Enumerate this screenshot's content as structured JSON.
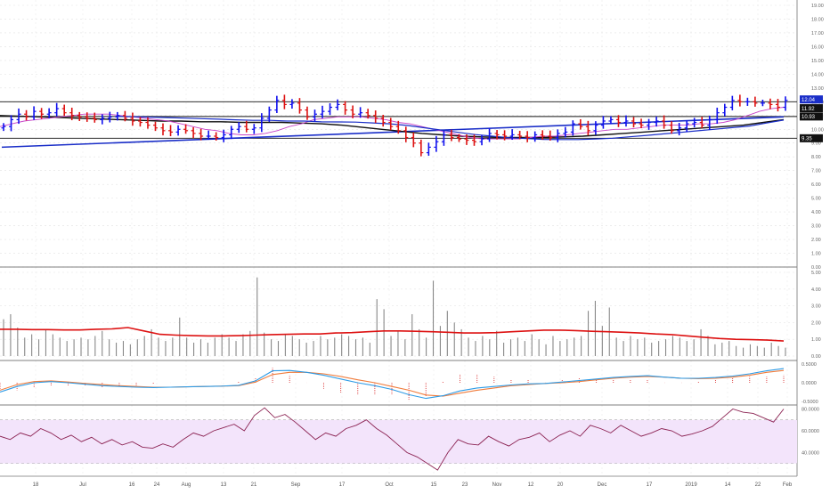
{
  "chart_data": {
    "type": "line",
    "x_ticks": [
      "18",
      "Jul",
      "16",
      "24",
      "Aug",
      "13",
      "21",
      "Sep",
      "17",
      "Oct",
      "15",
      "23",
      "Nov",
      "12",
      "20",
      "Dec",
      "17",
      "2019",
      "14",
      "22",
      "Feb"
    ],
    "price_pane": {
      "chart_style": "ohlc-bars",
      "colors": {
        "up": "#1010ee",
        "down": "#dd1111",
        "ma_short": "#c844c8",
        "ma_long": "#111111",
        "trendline": "#1a2ec8"
      },
      "y_ticks": [
        "19.00",
        "18.00",
        "17.00",
        "16.00",
        "15.00",
        "14.00",
        "13.00",
        "12.00",
        "11.00",
        "10.00",
        "9.00",
        "8.00",
        "7.00",
        "6.00",
        "5.00",
        "4.00",
        "3.00",
        "2.00",
        "1.00",
        "0.00"
      ],
      "ylim": [
        0,
        19
      ],
      "closes": [
        10.2,
        10.7,
        11.1,
        10.9,
        11.3,
        11.1,
        11.2,
        11.5,
        11.2,
        11.0,
        10.9,
        10.8,
        10.7,
        10.8,
        10.9,
        11.0,
        10.8,
        10.6,
        10.5,
        10.3,
        10.1,
        9.9,
        9.8,
        10.0,
        9.9,
        9.7,
        9.5,
        9.5,
        9.4,
        9.6,
        10.0,
        10.2,
        10.0,
        10.1,
        10.8,
        11.4,
        12.1,
        11.8,
        11.9,
        11.4,
        10.9,
        11.1,
        11.3,
        11.6,
        11.8,
        11.4,
        11.1,
        11.2,
        11.0,
        10.8,
        10.5,
        10.2,
        9.9,
        9.4,
        9.0,
        8.3,
        8.7,
        9.1,
        9.6,
        9.4,
        9.3,
        9.2,
        9.1,
        9.3,
        9.7,
        9.6,
        9.5,
        9.6,
        9.5,
        9.4,
        9.6,
        9.5,
        9.4,
        9.7,
        9.8,
        10.4,
        10.2,
        9.9,
        10.3,
        10.6,
        10.7,
        10.5,
        10.6,
        10.4,
        10.3,
        10.5,
        10.6,
        10.3,
        9.9,
        10.1,
        10.4,
        10.5,
        10.3,
        10.7,
        11.2,
        11.6,
        12.1,
        12.0,
        12.0,
        11.9,
        11.9,
        11.8,
        11.6,
        12.1
      ],
      "ma_short": [
        10.2,
        10.4,
        10.6,
        10.7,
        10.8,
        10.9,
        11.0,
        11.1,
        11.1,
        11.1,
        11.0,
        10.9,
        10.8,
        10.7,
        10.6,
        10.4,
        10.2,
        10.0,
        9.9,
        9.7,
        9.6,
        9.6,
        9.7,
        9.9,
        10.2,
        10.4,
        10.7,
        10.8,
        10.9,
        10.9,
        10.9,
        10.8,
        10.7,
        10.5,
        10.4,
        10.2,
        10.0,
        9.8,
        9.6,
        9.4,
        9.3,
        9.3,
        9.3,
        9.3,
        9.4,
        9.5,
        9.5,
        9.6,
        9.7,
        9.8,
        9.9,
        10.0,
        10.0,
        10.1,
        10.2,
        10.3,
        10.3,
        10.3,
        10.4,
        10.4,
        10.5,
        10.7,
        11.0,
        11.3,
        11.5,
        11.6
      ],
      "ma_long": [
        11.0,
        10.95,
        10.9,
        10.85,
        10.8,
        10.75,
        10.7,
        10.65,
        10.6,
        10.6,
        10.55,
        10.55,
        10.5,
        10.5,
        10.5,
        10.45,
        10.4,
        10.3,
        10.15,
        10.0,
        9.85,
        9.7,
        9.6,
        9.5,
        9.45,
        9.4,
        9.4,
        9.4,
        9.45,
        9.5,
        9.6,
        9.7,
        9.8,
        9.9,
        10.0,
        10.1,
        10.2,
        10.3,
        10.5,
        10.7
      ],
      "trendline_y": [
        8.7,
        10.9
      ],
      "horizontal_levels": [
        12.0,
        10.93,
        9.35
      ],
      "price_labels": [
        {
          "text": "12.04",
          "bg": "#1a2ec8"
        },
        {
          "text": "11.92",
          "bg": "#111111"
        },
        {
          "text": "10.93",
          "bg": "#111111"
        },
        {
          "text": "9.35",
          "bg": "#111111"
        }
      ]
    },
    "volume_pane": {
      "bars": [
        2.2,
        2.5,
        1.7,
        1.1,
        1.3,
        1.0,
        1.6,
        1.3,
        1.1,
        0.9,
        1.0,
        1.1,
        1.0,
        1.2,
        1.5,
        1.0,
        0.8,
        0.9,
        0.7,
        1.0,
        1.2,
        1.6,
        1.1,
        0.9,
        1.1,
        2.3,
        1.1,
        0.8,
        1.0,
        0.8,
        1.1,
        1.3,
        1.1,
        0.9,
        1.3,
        1.5,
        4.7,
        1.4,
        1.0,
        0.9,
        1.3,
        1.2,
        1.0,
        0.8,
        0.9,
        1.2,
        1.0,
        1.1,
        1.3,
        1.2,
        1.0,
        1.1,
        0.8,
        3.4,
        2.8,
        1.2,
        1.5,
        1.0,
        2.5,
        1.6,
        1.1,
        4.5,
        1.8,
        2.7,
        2.0,
        1.6,
        1.1,
        0.9,
        1.2,
        1.0,
        1.5,
        0.8,
        1.0,
        1.1,
        0.9,
        1.3,
        1.0,
        0.7,
        1.2,
        0.9,
        1.0,
        1.1,
        1.2,
        2.7,
        3.3,
        1.8,
        2.9,
        1.1,
        0.9,
        1.2,
        1.0,
        1.1,
        0.8,
        0.9,
        1.0,
        1.2,
        1.1,
        0.9,
        1.0,
        1.6,
        1.2,
        0.7,
        0.8,
        0.9,
        0.6,
        0.5,
        0.7,
        0.6,
        0.5,
        0.8,
        0.6,
        0.5
      ],
      "avg": [
        1.6,
        1.6,
        1.58,
        1.58,
        1.56,
        1.56,
        1.6,
        1.62,
        1.7,
        1.5,
        1.3,
        1.25,
        1.22,
        1.2,
        1.2,
        1.22,
        1.25,
        1.28,
        1.3,
        1.32,
        1.32,
        1.38,
        1.4,
        1.45,
        1.5,
        1.5,
        1.48,
        1.45,
        1.42,
        1.38,
        1.38,
        1.4,
        1.45,
        1.5,
        1.55,
        1.55,
        1.52,
        1.48,
        1.45,
        1.42,
        1.38,
        1.32,
        1.28,
        1.2,
        1.12,
        1.05,
        1.0,
        0.98,
        0.95,
        0.9
      ],
      "y_ticks": [
        "5.00",
        "4.00",
        "3.00",
        "2.00",
        "1.00",
        "0.00"
      ],
      "ylim": [
        0,
        5
      ],
      "colors": {
        "bars": "#888888",
        "avg": "#dd1111"
      }
    },
    "macd_pane": {
      "macd": [
        -0.25,
        -0.1,
        0.0,
        0.03,
        0.0,
        -0.04,
        -0.08,
        -0.1,
        -0.12,
        -0.13,
        -0.12,
        -0.11,
        -0.1,
        -0.09,
        -0.07,
        0.05,
        0.32,
        0.33,
        0.28,
        0.2,
        0.1,
        0.0,
        -0.08,
        -0.18,
        -0.32,
        -0.42,
        -0.35,
        -0.22,
        -0.14,
        -0.1,
        -0.06,
        -0.03,
        -0.02,
        0.02,
        0.06,
        0.1,
        0.14,
        0.17,
        0.19,
        0.15,
        0.12,
        0.12,
        0.14,
        0.18,
        0.24,
        0.32,
        0.38
      ],
      "signal": [
        -0.2,
        -0.05,
        0.03,
        0.05,
        0.02,
        -0.02,
        -0.05,
        -0.08,
        -0.1,
        -0.12,
        -0.12,
        -0.11,
        -0.1,
        -0.09,
        -0.08,
        0.02,
        0.22,
        0.28,
        0.28,
        0.24,
        0.17,
        0.08,
        -0.0,
        -0.1,
        -0.2,
        -0.33,
        -0.36,
        -0.28,
        -0.2,
        -0.14,
        -0.08,
        -0.05,
        -0.02,
        0.0,
        0.03,
        0.08,
        0.12,
        0.15,
        0.17,
        0.15,
        0.12,
        0.11,
        0.12,
        0.15,
        0.2,
        0.28,
        0.33
      ],
      "y_ticks": [
        "0.5000",
        "0.0000",
        "-0.5000"
      ],
      "ylim": [
        -0.55,
        0.55
      ],
      "colors": {
        "macd": "#2d9be6",
        "signal": "#f07c3c",
        "histogram": "#e05050"
      }
    },
    "rsi_pane": {
      "rsi": [
        55,
        52,
        58,
        55,
        62,
        58,
        52,
        56,
        50,
        54,
        48,
        52,
        47,
        50,
        45,
        44,
        48,
        45,
        52,
        58,
        55,
        60,
        63,
        66,
        60,
        74,
        81,
        72,
        75,
        68,
        60,
        52,
        58,
        55,
        62,
        65,
        70,
        62,
        56,
        48,
        40,
        36,
        30,
        24,
        40,
        52,
        48,
        47,
        55,
        50,
        46,
        52,
        54,
        58,
        50,
        56,
        60,
        55,
        65,
        62,
        58,
        65,
        60,
        55,
        58,
        62,
        60,
        55,
        57,
        60,
        64,
        72,
        80,
        77,
        76,
        72,
        68,
        80
      ],
      "y_ticks": [
        "80.0000",
        "60.0000",
        "40.0000"
      ],
      "ylim": [
        20,
        82
      ],
      "band": [
        70,
        30
      ],
      "colors": {
        "line": "#8b2252",
        "band": "#f3e4fb"
      }
    }
  }
}
